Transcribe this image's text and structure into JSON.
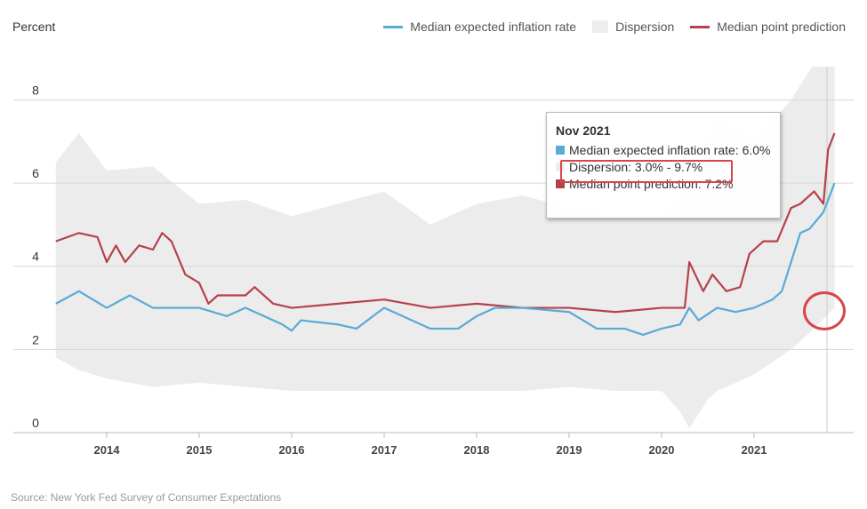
{
  "chart_data": {
    "type": "line",
    "ylabel": "Percent",
    "ylim": [
      0,
      8.8
    ],
    "yticks": [
      0,
      2,
      4,
      6,
      8
    ],
    "xticks": [
      2014,
      2015,
      2016,
      2017,
      2018,
      2019,
      2020,
      2021
    ],
    "grid": true,
    "legend_position": "top-right",
    "legend": [
      "Median expected inflation rate",
      "Dispersion",
      "Median point prediction"
    ],
    "colors": {
      "median": "#5aa9d6",
      "dispersion": "#ececec",
      "point": "#b5424a"
    },
    "series": [
      {
        "name": "Median expected inflation rate",
        "x": [
          2013.45,
          2013.7,
          2014.0,
          2014.25,
          2014.5,
          2015.0,
          2015.3,
          2015.5,
          2015.9,
          2016.0,
          2016.1,
          2016.5,
          2016.7,
          2017.0,
          2017.3,
          2017.5,
          2017.8,
          2018.0,
          2018.2,
          2018.5,
          2019.0,
          2019.3,
          2019.6,
          2019.8,
          2020.0,
          2020.2,
          2020.3,
          2020.4,
          2020.6,
          2020.8,
          2021.0,
          2021.2,
          2021.3,
          2021.5,
          2021.6,
          2021.75,
          2021.87
        ],
        "y": [
          3.1,
          3.4,
          3.0,
          3.3,
          3.0,
          3.0,
          2.8,
          3.0,
          2.6,
          2.45,
          2.7,
          2.6,
          2.5,
          3.0,
          2.7,
          2.5,
          2.5,
          2.8,
          3.0,
          3.0,
          2.9,
          2.5,
          2.5,
          2.35,
          2.5,
          2.6,
          3.0,
          2.7,
          3.0,
          2.9,
          3.0,
          3.2,
          3.4,
          4.8,
          4.9,
          5.3,
          6.0
        ]
      },
      {
        "name": "Median point prediction",
        "x": [
          2013.45,
          2013.7,
          2013.9,
          2014.0,
          2014.1,
          2014.2,
          2014.35,
          2014.5,
          2014.6,
          2014.7,
          2014.85,
          2015.0,
          2015.1,
          2015.2,
          2015.5,
          2015.6,
          2015.8,
          2016.0,
          2016.5,
          2017.0,
          2017.5,
          2018.0,
          2018.5,
          2019.0,
          2019.5,
          2020.0,
          2020.25,
          2020.3,
          2020.45,
          2020.55,
          2020.7,
          2020.85,
          2020.95,
          2021.1,
          2021.25,
          2021.4,
          2021.5,
          2021.65,
          2021.75,
          2021.8,
          2021.87
        ],
        "y": [
          4.6,
          4.8,
          4.7,
          4.1,
          4.5,
          4.1,
          4.5,
          4.4,
          4.8,
          4.6,
          3.8,
          3.6,
          3.1,
          3.3,
          3.3,
          3.5,
          3.1,
          3.0,
          3.1,
          3.2,
          3.0,
          3.1,
          3.0,
          3.0,
          2.9,
          3.0,
          3.0,
          4.1,
          3.4,
          3.8,
          3.4,
          3.5,
          4.3,
          4.6,
          4.6,
          5.4,
          5.5,
          5.8,
          5.5,
          6.8,
          7.2
        ]
      },
      {
        "name": "Dispersion",
        "x": [
          2013.45,
          2013.7,
          2014.0,
          2014.5,
          2015.0,
          2015.5,
          2016.0,
          2016.5,
          2017.0,
          2017.5,
          2018.0,
          2018.5,
          2019.0,
          2019.5,
          2020.0,
          2020.2,
          2020.3,
          2020.5,
          2020.6,
          2021.0,
          2021.4,
          2021.6,
          2021.87
        ],
        "low": [
          1.8,
          1.5,
          1.3,
          1.1,
          1.2,
          1.1,
          1.0,
          1.0,
          1.0,
          1.0,
          1.0,
          1.0,
          1.1,
          1.0,
          1.0,
          0.5,
          0.1,
          0.8,
          1.0,
          1.4,
          2.0,
          2.4,
          3.0
        ],
        "high": [
          6.5,
          7.2,
          6.3,
          6.4,
          5.5,
          5.6,
          5.2,
          5.5,
          5.8,
          5.0,
          5.5,
          5.7,
          5.4,
          5.2,
          5.2,
          5.6,
          6.0,
          7.0,
          7.5,
          7.0,
          8.0,
          8.7,
          9.7
        ]
      }
    ]
  },
  "tooltip": {
    "title": "Nov 2021",
    "median": "Median expected inflation rate: 6.0%",
    "dispersion": "Dispersion: 3.0% - 9.7%",
    "point": "Median point prediction: 7.2%"
  },
  "source": "Source: New York Fed Survey of Consumer Expectations"
}
